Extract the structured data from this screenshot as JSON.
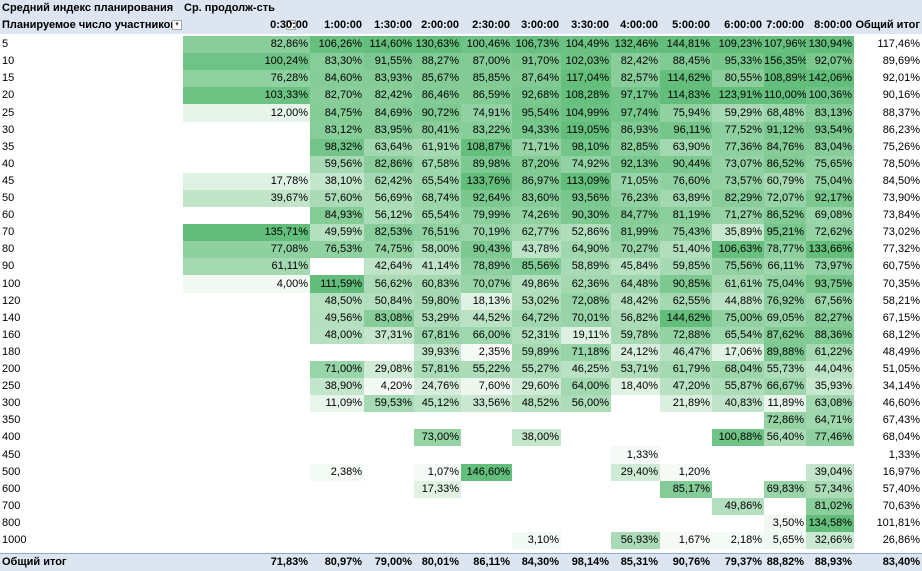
{
  "pivot": {
    "header_values_label": "Средний индекс планирования",
    "col_field_label": "Ср. продолж-сть",
    "row_field_label": "Планируемое число участников",
    "grand_total_label": "Общий итог",
    "filter_icon": "chevron-down-icon",
    "columns": [
      "0:30:00",
      "1:00:00",
      "1:30:00",
      "2:00:00",
      "2:30:00",
      "3:00:00",
      "3:30:00",
      "4:00:00",
      "5:00:00",
      "6:00:00",
      "7:00:00",
      "8:00:00"
    ],
    "rows": [
      {
        "label": "5",
        "values": [
          "82,86%",
          "106,26%",
          "114,60%",
          "130,63%",
          "100,46%",
          "106,73%",
          "104,49%",
          "132,46%",
          "144,81%",
          "109,23%",
          "107,96%",
          "130,94%"
        ],
        "total": "117,46%"
      },
      {
        "label": "10",
        "values": [
          "100,24%",
          "83,30%",
          "91,55%",
          "88,27%",
          "87,00%",
          "91,70%",
          "102,03%",
          "82,42%",
          "88,45%",
          "95,33%",
          "156,35%",
          "92,07%"
        ],
        "total": "89,69%"
      },
      {
        "label": "15",
        "values": [
          "76,28%",
          "84,60%",
          "83,93%",
          "85,67%",
          "85,85%",
          "87,64%",
          "117,04%",
          "82,57%",
          "114,62%",
          "80,55%",
          "108,89%",
          "142,06%"
        ],
        "total": "92,01%"
      },
      {
        "label": "20",
        "values": [
          "103,33%",
          "82,70%",
          "82,42%",
          "86,46%",
          "86,59%",
          "92,68%",
          "108,28%",
          "97,17%",
          "114,83%",
          "123,91%",
          "110,00%",
          "100,36%"
        ],
        "total": "90,16%"
      },
      {
        "label": "25",
        "values": [
          "12,00%",
          "84,75%",
          "84,69%",
          "90,72%",
          "74,91%",
          "95,54%",
          "104,99%",
          "97,74%",
          "75,94%",
          "59,29%",
          "68,48%",
          "83,13%"
        ],
        "total": "88,37%"
      },
      {
        "label": "30",
        "values": [
          "",
          "83,12%",
          "83,95%",
          "80,41%",
          "83,22%",
          "94,33%",
          "119,05%",
          "86,93%",
          "96,11%",
          "77,52%",
          "91,12%",
          "93,54%"
        ],
        "total": "86,23%"
      },
      {
        "label": "35",
        "values": [
          "",
          "98,32%",
          "63,64%",
          "61,91%",
          "108,87%",
          "71,71%",
          "98,10%",
          "82,85%",
          "63,90%",
          "77,36%",
          "84,76%",
          "83,04%"
        ],
        "total": "75,26%"
      },
      {
        "label": "40",
        "values": [
          "",
          "59,56%",
          "82,86%",
          "67,58%",
          "89,98%",
          "87,20%",
          "74,92%",
          "92,13%",
          "90,44%",
          "73,07%",
          "86,52%",
          "75,65%"
        ],
        "total": "78,50%"
      },
      {
        "label": "45",
        "values": [
          "17,78%",
          "38,10%",
          "62,42%",
          "65,54%",
          "133,76%",
          "86,97%",
          "113,09%",
          "71,05%",
          "76,60%",
          "73,57%",
          "60,79%",
          "75,04%"
        ],
        "total": "84,50%"
      },
      {
        "label": "50",
        "values": [
          "39,67%",
          "57,60%",
          "56,69%",
          "68,74%",
          "92,64%",
          "83,60%",
          "93,56%",
          "76,23%",
          "63,89%",
          "82,29%",
          "72,07%",
          "92,17%"
        ],
        "total": "73,90%"
      },
      {
        "label": "60",
        "values": [
          "",
          "84,93%",
          "56,12%",
          "65,54%",
          "79,99%",
          "74,26%",
          "90,30%",
          "84,77%",
          "81,19%",
          "71,27%",
          "86,52%",
          "69,08%"
        ],
        "total": "73,84%"
      },
      {
        "label": "70",
        "values": [
          "135,71%",
          "49,59%",
          "82,53%",
          "76,51%",
          "70,19%",
          "62,77%",
          "52,86%",
          "81,99%",
          "75,43%",
          "35,89%",
          "95,21%",
          "72,62%"
        ],
        "total": "73,02%"
      },
      {
        "label": "80",
        "values": [
          "77,08%",
          "76,53%",
          "74,75%",
          "58,00%",
          "90,43%",
          "43,78%",
          "64,90%",
          "70,27%",
          "51,40%",
          "106,63%",
          "78,77%",
          "133,66%"
        ],
        "total": "77,32%"
      },
      {
        "label": "90",
        "values": [
          "61,11%",
          "",
          "42,64%",
          "41,14%",
          "78,89%",
          "85,56%",
          "58,89%",
          "45,84%",
          "59,85%",
          "75,56%",
          "66,11%",
          "73,97%"
        ],
        "total": "60,75%"
      },
      {
        "label": "100",
        "values": [
          "4,00%",
          "111,59%",
          "56,62%",
          "60,83%",
          "70,07%",
          "49,86%",
          "62,36%",
          "64,48%",
          "90,85%",
          "61,61%",
          "75,04%",
          "93,75%"
        ],
        "total": "70,35%"
      },
      {
        "label": "120",
        "values": [
          "",
          "48,50%",
          "50,84%",
          "59,80%",
          "18,13%",
          "53,02%",
          "72,08%",
          "48,42%",
          "62,55%",
          "44,88%",
          "76,92%",
          "67,56%"
        ],
        "total": "58,21%"
      },
      {
        "label": "140",
        "values": [
          "",
          "49,56%",
          "83,08%",
          "53,29%",
          "44,52%",
          "64,72%",
          "70,01%",
          "56,82%",
          "144,62%",
          "75,00%",
          "69,05%",
          "82,27%"
        ],
        "total": "67,15%"
      },
      {
        "label": "160",
        "values": [
          "",
          "48,00%",
          "37,31%",
          "67,81%",
          "66,00%",
          "52,31%",
          "19,11%",
          "59,78%",
          "72,88%",
          "65,54%",
          "87,62%",
          "88,36%"
        ],
        "total": "68,12%"
      },
      {
        "label": "180",
        "values": [
          "",
          "",
          "",
          "39,93%",
          "2,35%",
          "59,89%",
          "71,18%",
          "24,12%",
          "46,47%",
          "17,06%",
          "89,88%",
          "61,22%"
        ],
        "total": "48,49%"
      },
      {
        "label": "200",
        "values": [
          "",
          "71,00%",
          "29,08%",
          "57,81%",
          "55,22%",
          "55,27%",
          "46,25%",
          "53,71%",
          "61,79%",
          "68,04%",
          "55,73%",
          "44,04%"
        ],
        "total": "51,05%"
      },
      {
        "label": "250",
        "values": [
          "",
          "38,90%",
          "4,20%",
          "24,76%",
          "7,60%",
          "29,60%",
          "64,00%",
          "18,40%",
          "47,20%",
          "55,87%",
          "66,67%",
          "35,93%"
        ],
        "total": "34,14%"
      },
      {
        "label": "300",
        "values": [
          "",
          "11,09%",
          "59,53%",
          "45,12%",
          "33,56%",
          "48,52%",
          "56,00%",
          "",
          "21,89%",
          "40,83%",
          "11,89%",
          "63,08%"
        ],
        "total": "46,60%"
      },
      {
        "label": "350",
        "values": [
          "",
          "",
          "",
          "",
          "",
          "",
          "",
          "",
          "",
          "",
          "72,86%",
          "64,71%"
        ],
        "total": "67,43%"
      },
      {
        "label": "400",
        "values": [
          "",
          "",
          "",
          "73,00%",
          "",
          "38,00%",
          "",
          "",
          "",
          "100,88%",
          "56,40%",
          "77,46%"
        ],
        "total": "68,04%"
      },
      {
        "label": "450",
        "values": [
          "",
          "",
          "",
          "",
          "",
          "",
          "",
          "1,33%",
          "",
          "",
          "",
          ""
        ],
        "total": "1,33%"
      },
      {
        "label": "500",
        "values": [
          "",
          "2,38%",
          "",
          "1,07%",
          "146,60%",
          "",
          "",
          "29,40%",
          "1,20%",
          "",
          "",
          "39,04%"
        ],
        "total": "16,97%"
      },
      {
        "label": "600",
        "values": [
          "",
          "",
          "",
          "17,33%",
          "",
          "",
          "",
          "",
          "85,17%",
          "",
          "69,83%",
          "57,34%"
        ],
        "total": "57,40%"
      },
      {
        "label": "700",
        "values": [
          "",
          "",
          "",
          "",
          "",
          "",
          "",
          "",
          "",
          "49,86%",
          "",
          "81,02%"
        ],
        "total": "70,63%"
      },
      {
        "label": "800",
        "values": [
          "",
          "",
          "",
          "",
          "",
          "",
          "",
          "",
          "",
          "",
          "3,50%",
          "134,58%"
        ],
        "total": "101,81%"
      },
      {
        "label": "1000",
        "values": [
          "",
          "",
          "",
          "",
          "",
          "3,10%",
          "",
          "56,93%",
          "1,67%",
          "2,18%",
          "5,65%",
          "32,66%"
        ],
        "total": "26,86%"
      }
    ],
    "grand_totals": [
      "71,83%",
      "80,97%",
      "79,00%",
      "80,01%",
      "86,11%",
      "84,30%",
      "98,14%",
      "85,31%",
      "90,76%",
      "79,37%",
      "88,82%",
      "88,93%"
    ],
    "grand_total_overall": "83,40%",
    "heat_colors": {
      "low": "#f7fbf7",
      "high": "#63be7b"
    }
  }
}
